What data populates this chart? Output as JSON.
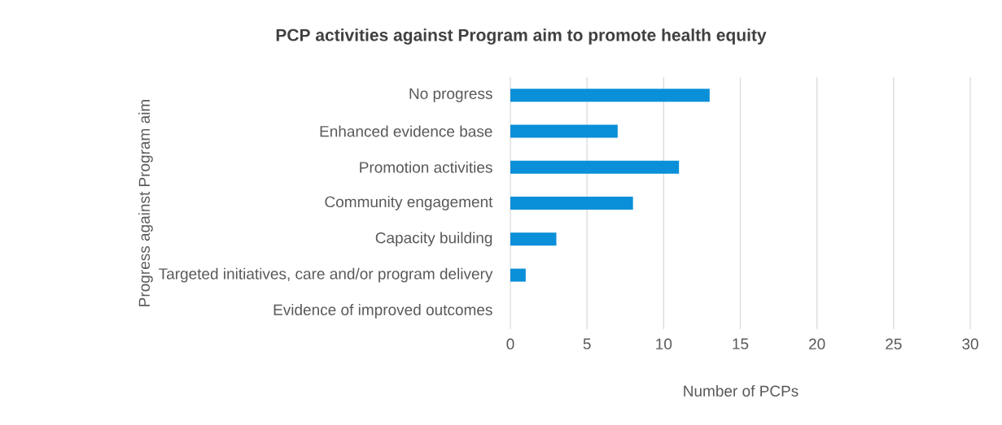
{
  "chart_data": {
    "type": "bar",
    "orientation": "horizontal",
    "title": "PCP activities against Program aim to promote health equity",
    "xlabel": "Number of PCPs",
    "ylabel": "Progress against Program aim",
    "categories": [
      "No progress",
      "Enhanced evidence base",
      "Promotion activities",
      "Community engagement",
      "Capacity building",
      "Targeted initiatives, care and/or program delivery",
      "Evidence of improved outcomes"
    ],
    "values": [
      13,
      7,
      11,
      8,
      3,
      1,
      0
    ],
    "color": "#0a8fd9",
    "xlim": [
      0,
      30
    ],
    "xticks": [
      0,
      5,
      10,
      15,
      20,
      25,
      30
    ],
    "grid": "x"
  }
}
